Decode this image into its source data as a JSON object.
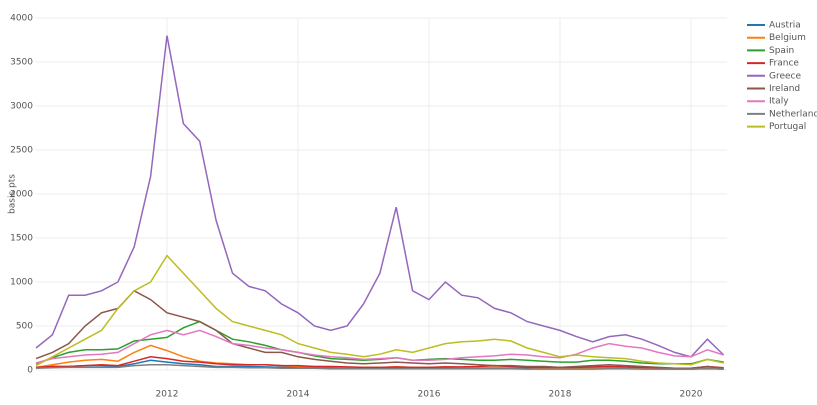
{
  "chart_data": {
    "type": "line",
    "y_label": "basis pts",
    "x": [
      2010,
      2010.25,
      2010.5,
      2010.75,
      2011,
      2011.25,
      2011.5,
      2011.75,
      2012,
      2012.25,
      2012.5,
      2012.75,
      2013,
      2013.25,
      2013.5,
      2013.75,
      2014,
      2014.25,
      2014.5,
      2014.75,
      2015,
      2015.25,
      2015.5,
      2015.75,
      2016,
      2016.25,
      2016.5,
      2016.75,
      2017,
      2017.25,
      2017.5,
      2017.75,
      2018,
      2018.25,
      2018.5,
      2018.75,
      2019,
      2019.25,
      2019.5,
      2019.75,
      2020,
      2020.25,
      2020.5
    ],
    "xlim": [
      2010,
      2020.55
    ],
    "xticks": [
      2012,
      2014,
      2016,
      2018,
      2020
    ],
    "ylim": [
      0,
      4000
    ],
    "yticks": [
      0,
      500,
      1000,
      1500,
      2000,
      2500,
      3000,
      3500,
      4000
    ],
    "grid": true,
    "legend": "top-right",
    "series": [
      {
        "name": "Austria",
        "color": "#1f77b4",
        "values": [
          20,
          40,
          40,
          50,
          50,
          40,
          70,
          110,
          90,
          70,
          60,
          40,
          40,
          40,
          35,
          30,
          30,
          25,
          20,
          20,
          20,
          20,
          25,
          20,
          20,
          25,
          25,
          20,
          20,
          20,
          15,
          15,
          15,
          15,
          20,
          20,
          20,
          15,
          15,
          10,
          10,
          20,
          10
        ]
      },
      {
        "name": "Belgium",
        "color": "#ff7f0e",
        "values": [
          30,
          60,
          90,
          110,
          120,
          100,
          200,
          280,
          220,
          150,
          100,
          80,
          70,
          60,
          60,
          50,
          40,
          40,
          35,
          30,
          30,
          30,
          35,
          30,
          30,
          35,
          30,
          25,
          30,
          30,
          30,
          20,
          20,
          20,
          20,
          25,
          25,
          20,
          15,
          10,
          15,
          25,
          15
        ]
      },
      {
        "name": "Spain",
        "color": "#2ca02c",
        "values": [
          70,
          140,
          200,
          230,
          230,
          240,
          330,
          350,
          370,
          480,
          550,
          450,
          350,
          320,
          280,
          230,
          200,
          160,
          130,
          120,
          110,
          120,
          140,
          110,
          120,
          130,
          120,
          110,
          110,
          120,
          110,
          100,
          90,
          90,
          110,
          110,
          100,
          80,
          70,
          70,
          70,
          120,
          90
        ]
      },
      {
        "name": "France",
        "color": "#d62728",
        "values": [
          30,
          40,
          40,
          50,
          60,
          50,
          100,
          150,
          130,
          100,
          90,
          70,
          60,
          60,
          60,
          50,
          50,
          40,
          40,
          35,
          30,
          30,
          35,
          30,
          30,
          35,
          35,
          40,
          50,
          40,
          30,
          30,
          30,
          30,
          35,
          40,
          35,
          30,
          25,
          20,
          20,
          40,
          25
        ]
      },
      {
        "name": "Greece",
        "color": "#9467bd",
        "values": [
          250,
          400,
          850,
          850,
          900,
          1000,
          1400,
          2200,
          3800,
          2800,
          2600,
          1700,
          1100,
          950,
          900,
          750,
          650,
          500,
          450,
          500,
          750,
          1100,
          1850,
          900,
          800,
          1000,
          850,
          820,
          700,
          650,
          550,
          500,
          450,
          380,
          320,
          380,
          400,
          350,
          280,
          200,
          150,
          350,
          170
        ]
      },
      {
        "name": "Ireland",
        "color": "#8c564b",
        "values": [
          130,
          200,
          300,
          500,
          650,
          700,
          900,
          800,
          650,
          600,
          550,
          450,
          300,
          250,
          200,
          200,
          150,
          120,
          100,
          80,
          70,
          80,
          90,
          80,
          70,
          80,
          70,
          60,
          50,
          50,
          40,
          40,
          30,
          40,
          50,
          60,
          50,
          40,
          30,
          20,
          20,
          40,
          20
        ]
      },
      {
        "name": "Italy",
        "color": "#e377c2",
        "values": [
          80,
          130,
          150,
          170,
          180,
          200,
          300,
          400,
          450,
          400,
          450,
          380,
          300,
          280,
          250,
          230,
          200,
          170,
          150,
          140,
          120,
          130,
          140,
          110,
          110,
          120,
          140,
          150,
          160,
          180,
          170,
          150,
          140,
          180,
          250,
          300,
          270,
          250,
          200,
          160,
          150,
          230,
          170
        ]
      },
      {
        "name": "Netherlands",
        "color": "#7f7f7f",
        "values": [
          20,
          25,
          30,
          30,
          30,
          30,
          50,
          60,
          60,
          50,
          40,
          30,
          30,
          25,
          25,
          20,
          20,
          20,
          15,
          15,
          15,
          15,
          15,
          15,
          15,
          15,
          15,
          15,
          15,
          15,
          10,
          10,
          10,
          10,
          10,
          15,
          15,
          10,
          10,
          10,
          10,
          15,
          10
        ]
      },
      {
        "name": "Portugal",
        "color": "#bcbd22",
        "values": [
          50,
          150,
          250,
          350,
          450,
          700,
          900,
          1000,
          1300,
          1100,
          900,
          700,
          550,
          500,
          450,
          400,
          300,
          250,
          200,
          180,
          150,
          180,
          230,
          200,
          250,
          300,
          320,
          330,
          350,
          330,
          250,
          200,
          150,
          170,
          150,
          140,
          130,
          100,
          80,
          70,
          60,
          120,
          80
        ]
      }
    ]
  }
}
